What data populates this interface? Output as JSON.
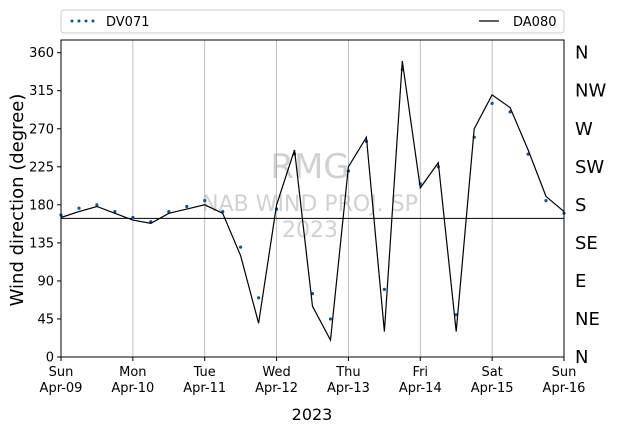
{
  "chart_data": {
    "type": "line",
    "xlabel": "2023",
    "ylabel": "Wind direction (degree)",
    "ylim": [
      0,
      375
    ],
    "xlim": [
      "2023-04-09T00:00",
      "2023-04-16T00:00"
    ],
    "yticks": [
      0,
      45,
      90,
      135,
      180,
      225,
      270,
      315,
      360
    ],
    "xticks": [
      {
        "date": "2023-04-09",
        "day": "Sun",
        "label": "Apr-09"
      },
      {
        "date": "2023-04-10",
        "day": "Mon",
        "label": "Apr-10"
      },
      {
        "date": "2023-04-11",
        "day": "Tue",
        "label": "Apr-11"
      },
      {
        "date": "2023-04-12",
        "day": "Wed",
        "label": "Apr-12"
      },
      {
        "date": "2023-04-13",
        "day": "Thu",
        "label": "Apr-13"
      },
      {
        "date": "2023-04-14",
        "day": "Fri",
        "label": "Apr-14"
      },
      {
        "date": "2023-04-15",
        "day": "Sat",
        "label": "Apr-15"
      },
      {
        "date": "2023-04-16",
        "day": "Sun",
        "label": "Apr-16"
      }
    ],
    "grid": "vertical",
    "legend_position": "top",
    "compass": [
      {
        "value": 0,
        "label": "N"
      },
      {
        "value": 45,
        "label": "NE"
      },
      {
        "value": 90,
        "label": "E"
      },
      {
        "value": 135,
        "label": "SE"
      },
      {
        "value": 180,
        "label": "S"
      },
      {
        "value": 225,
        "label": "SW"
      },
      {
        "value": 270,
        "label": "W"
      },
      {
        "value": 315,
        "label": "NW"
      },
      {
        "value": 360,
        "label": "N"
      }
    ],
    "reference_line": {
      "y": 164
    },
    "watermark": [
      "RMG",
      "NAB WIND PROJ. SP",
      "2023"
    ],
    "series": [
      {
        "name": "DV071",
        "style": "points",
        "color": "#1f4e8c",
        "x": [
          "2023-04-09T00:00",
          "2023-04-09T06:00",
          "2023-04-09T12:00",
          "2023-04-09T18:00",
          "2023-04-10T00:00",
          "2023-04-10T06:00",
          "2023-04-10T12:00",
          "2023-04-10T18:00",
          "2023-04-11T00:00",
          "2023-04-11T06:00",
          "2023-04-11T12:00",
          "2023-04-11T18:00",
          "2023-04-12T00:00",
          "2023-04-12T06:00",
          "2023-04-12T12:00",
          "2023-04-12T18:00",
          "2023-04-13T00:00",
          "2023-04-13T06:00",
          "2023-04-13T12:00",
          "2023-04-13T18:00",
          "2023-04-14T00:00",
          "2023-04-14T06:00",
          "2023-04-14T12:00",
          "2023-04-14T18:00",
          "2023-04-15T00:00",
          "2023-04-15T06:00",
          "2023-04-15T12:00",
          "2023-04-15T18:00",
          "2023-04-16T00:00"
        ],
        "y": [
          168,
          176,
          180,
          172,
          165,
          160,
          172,
          178,
          185,
          172,
          130,
          70,
          175,
          240,
          75,
          45,
          220,
          255,
          80,
          340,
          205,
          225,
          50,
          260,
          300,
          290,
          240,
          185,
          170
        ]
      },
      {
        "name": "DA080",
        "style": "line",
        "color": "#000000",
        "x": [
          "2023-04-09T00:00",
          "2023-04-09T06:00",
          "2023-04-09T12:00",
          "2023-04-09T18:00",
          "2023-04-10T00:00",
          "2023-04-10T06:00",
          "2023-04-10T12:00",
          "2023-04-10T18:00",
          "2023-04-11T00:00",
          "2023-04-11T06:00",
          "2023-04-11T12:00",
          "2023-04-11T18:00",
          "2023-04-12T00:00",
          "2023-04-12T06:00",
          "2023-04-12T12:00",
          "2023-04-12T18:00",
          "2023-04-13T00:00",
          "2023-04-13T06:00",
          "2023-04-13T12:00",
          "2023-04-13T18:00",
          "2023-04-14T00:00",
          "2023-04-14T06:00",
          "2023-04-14T12:00",
          "2023-04-14T18:00",
          "2023-04-15T00:00",
          "2023-04-15T06:00",
          "2023-04-15T12:00",
          "2023-04-15T18:00",
          "2023-04-16T00:00"
        ],
        "y": [
          165,
          172,
          178,
          170,
          162,
          158,
          170,
          175,
          180,
          170,
          120,
          40,
          180,
          245,
          60,
          20,
          225,
          260,
          30,
          350,
          200,
          230,
          30,
          270,
          310,
          295,
          245,
          190,
          172
        ]
      }
    ]
  }
}
